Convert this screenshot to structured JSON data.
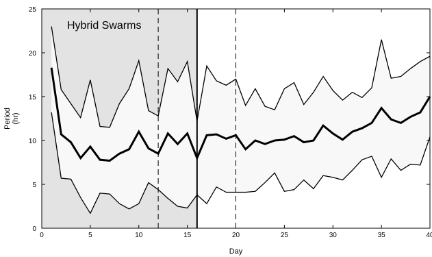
{
  "chart_data": {
    "type": "line",
    "xlabel": "Day",
    "ylabel": "Period\n(hr)",
    "xlim": [
      0,
      40
    ],
    "ylim": [
      0,
      25
    ],
    "xticks": [
      0,
      5,
      10,
      15,
      20,
      25,
      30,
      35,
      40
    ],
    "yticks": [
      0,
      5,
      10,
      15,
      20,
      25
    ],
    "grid": false,
    "annotations": [
      {
        "text": "Hybrid Swarms"
      }
    ],
    "shaded_region": {
      "x": [
        0,
        16
      ],
      "color": "#e3e3e3"
    },
    "vertical_lines": [
      {
        "x": 12,
        "style": "dashed"
      },
      {
        "x": 16,
        "style": "solid"
      },
      {
        "x": 20,
        "style": "dashed"
      }
    ],
    "band_fill": "#f8f8f8",
    "series": [
      {
        "role": "upper",
        "x": [
          1,
          2,
          3,
          4,
          5,
          6,
          7,
          8,
          9,
          10,
          11,
          12,
          13,
          14,
          15,
          16,
          17,
          18,
          19,
          20,
          21,
          22,
          23,
          24,
          25,
          26,
          27,
          28,
          29,
          30,
          31,
          32,
          33,
          34,
          35,
          36,
          37,
          38,
          39,
          40
        ],
        "values": [
          23.0,
          15.8,
          14.2,
          12.6,
          16.9,
          11.6,
          11.5,
          14.2,
          15.9,
          19.1,
          13.4,
          12.8,
          18.2,
          16.7,
          19.0,
          12.2,
          18.5,
          16.8,
          16.3,
          17.0,
          14.0,
          15.9,
          13.9,
          13.5,
          15.9,
          16.6,
          14.1,
          15.5,
          17.3,
          15.7,
          14.6,
          15.5,
          14.9,
          16.0,
          21.5,
          17.1,
          17.3,
          18.2,
          19.0,
          19.6
        ]
      },
      {
        "role": "mean",
        "x": [
          1,
          2,
          3,
          4,
          5,
          6,
          7,
          8,
          9,
          10,
          11,
          12,
          13,
          14,
          15,
          16,
          17,
          18,
          19,
          20,
          21,
          22,
          23,
          24,
          25,
          26,
          27,
          28,
          29,
          30,
          31,
          32,
          33,
          34,
          35,
          36,
          37,
          38,
          39,
          40
        ],
        "values": [
          18.3,
          10.7,
          9.8,
          8.0,
          9.3,
          7.8,
          7.7,
          8.5,
          9.0,
          11.0,
          9.1,
          8.5,
          10.8,
          9.6,
          10.8,
          8.0,
          10.6,
          10.7,
          10.2,
          10.6,
          9.0,
          10.0,
          9.6,
          10.0,
          10.1,
          10.5,
          9.8,
          10.0,
          11.7,
          10.8,
          10.1,
          11.0,
          11.4,
          12.0,
          13.7,
          12.4,
          12.0,
          12.7,
          13.2,
          15.0
        ]
      },
      {
        "role": "lower",
        "x": [
          1,
          2,
          3,
          4,
          5,
          6,
          7,
          8,
          9,
          10,
          11,
          12,
          13,
          14,
          15,
          16,
          17,
          18,
          19,
          20,
          21,
          22,
          23,
          24,
          25,
          26,
          27,
          28,
          29,
          30,
          31,
          32,
          33,
          34,
          35,
          36,
          37,
          38,
          39,
          40
        ],
        "values": [
          13.2,
          5.7,
          5.6,
          3.5,
          1.7,
          4.0,
          3.9,
          2.8,
          2.2,
          2.8,
          5.2,
          4.4,
          3.4,
          2.5,
          2.3,
          3.8,
          2.8,
          4.7,
          4.1,
          4.1,
          4.1,
          4.2,
          5.2,
          6.3,
          4.2,
          4.4,
          5.5,
          4.5,
          6.0,
          5.8,
          5.5,
          6.6,
          7.8,
          8.2,
          5.8,
          7.9,
          6.6,
          7.3,
          7.2,
          10.4
        ]
      }
    ]
  }
}
